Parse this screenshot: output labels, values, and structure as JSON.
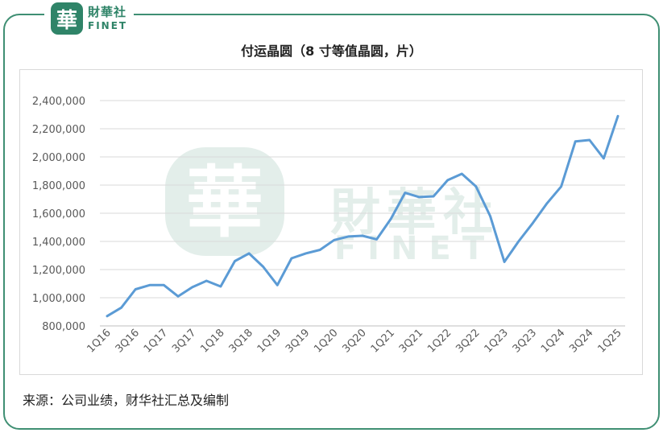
{
  "brand": {
    "seal_char": "華",
    "cn": "財華社",
    "en": "FINET"
  },
  "watermark": {
    "seal_char": "華",
    "cn": "財華社",
    "en": "FINET"
  },
  "source": "来源：公司业绩，财华社汇总及编制",
  "chart_data": {
    "type": "line",
    "title": "付运晶圆（8 寸等值晶圆，片）",
    "xlabel": "",
    "ylabel": "",
    "ylim": [
      800000,
      2400000
    ],
    "yticks": [
      800000,
      1000000,
      1200000,
      1400000,
      1600000,
      1800000,
      2000000,
      2200000,
      2400000
    ],
    "ytick_labels": [
      "800,000",
      "1,000,000",
      "1,200,000",
      "1,400,000",
      "1,600,000",
      "1,800,000",
      "2,000,000",
      "2,200,000",
      "2,400,000"
    ],
    "grid": true,
    "line_color": "#5b9bd5",
    "categories": [
      "1Q16",
      "2Q16",
      "3Q16",
      "4Q16",
      "1Q17",
      "2Q17",
      "3Q17",
      "4Q17",
      "1Q18",
      "2Q18",
      "3Q18",
      "4Q18",
      "1Q19",
      "2Q19",
      "3Q19",
      "4Q19",
      "1Q20",
      "2Q20",
      "3Q20",
      "4Q20",
      "1Q21",
      "2Q21",
      "3Q21",
      "4Q21",
      "1Q22",
      "2Q22",
      "3Q22",
      "4Q22",
      "1Q23",
      "2Q23",
      "3Q23",
      "4Q23",
      "1Q24",
      "2Q24",
      "3Q24",
      "4Q24",
      "1Q25"
    ],
    "xtick_labels": [
      "1Q16",
      "3Q16",
      "1Q17",
      "3Q17",
      "1Q18",
      "3Q18",
      "1Q19",
      "3Q19",
      "1Q20",
      "3Q20",
      "1Q21",
      "3Q21",
      "1Q22",
      "3Q22",
      "1Q23",
      "3Q23",
      "1Q24",
      "3Q24",
      "1Q25"
    ],
    "values": [
      870000,
      930000,
      1060000,
      1090000,
      1090000,
      1010000,
      1075000,
      1120000,
      1080000,
      1260000,
      1315000,
      1220000,
      1090000,
      1280000,
      1315000,
      1340000,
      1410000,
      1435000,
      1440000,
      1415000,
      1560000,
      1745000,
      1715000,
      1720000,
      1835000,
      1880000,
      1790000,
      1580000,
      1255000,
      1400000,
      1530000,
      1670000,
      1790000,
      2110000,
      2120000,
      1990000,
      2290000
    ]
  }
}
